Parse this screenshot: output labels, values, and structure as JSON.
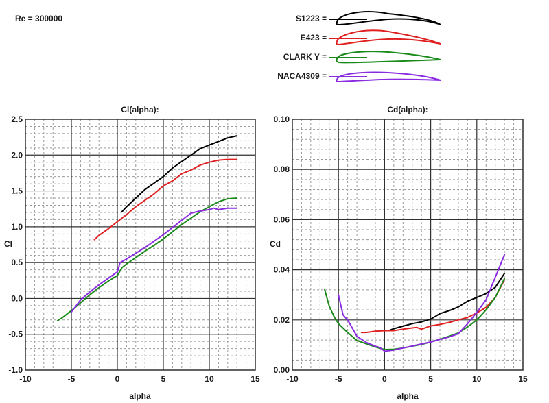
{
  "header": {
    "reynolds_label": "Re = 300000"
  },
  "legend": [
    {
      "name": "S1223 =",
      "color": "#000000",
      "foil": "s1223"
    },
    {
      "name": "E423 =",
      "color": "#e02020",
      "foil": "e423"
    },
    {
      "name": "CLARK Y =",
      "color": "#1a8a1a",
      "foil": "clarky"
    },
    {
      "name": "NACA4309 =",
      "color": "#8a2be2",
      "foil": "naca4309"
    }
  ],
  "chart_data": [
    {
      "type": "line",
      "title": "Cl(alpha):",
      "xlabel": "alpha",
      "ylabel": "Cl",
      "xlim": [
        -10,
        15
      ],
      "ylim": [
        -1.0,
        2.5
      ],
      "xticks": [
        "-10",
        "-5",
        "0",
        "5",
        "10",
        "15"
      ],
      "yticks": [
        "-1.0",
        "-0.5",
        "0.0",
        "0.5",
        "1.0",
        "1.5",
        "2.0",
        "2.5"
      ],
      "grid": true,
      "series": [
        {
          "name": "S1223",
          "color": "#000000",
          "x": [
            0.5,
            1,
            2,
            3,
            4,
            5,
            6,
            7,
            8,
            9,
            10,
            11,
            12,
            13
          ],
          "y": [
            1.21,
            1.28,
            1.4,
            1.52,
            1.61,
            1.7,
            1.82,
            1.91,
            2.0,
            2.09,
            2.14,
            2.19,
            2.24,
            2.27
          ]
        },
        {
          "name": "E423",
          "color": "#e02020",
          "x": [
            -2.5,
            -2,
            -1,
            0,
            1,
            2,
            3,
            4,
            5,
            6,
            7,
            8,
            9,
            10,
            11,
            12,
            13
          ],
          "y": [
            0.82,
            0.88,
            0.97,
            1.07,
            1.17,
            1.28,
            1.37,
            1.46,
            1.57,
            1.64,
            1.74,
            1.79,
            1.86,
            1.9,
            1.93,
            1.94,
            1.94
          ]
        },
        {
          "name": "CLARK Y",
          "color": "#1a8a1a",
          "x": [
            -6.5,
            -6,
            -5,
            -4,
            -3,
            -2,
            -1,
            0,
            0.5,
            1,
            2,
            3,
            4,
            5,
            6,
            7,
            8,
            9,
            10,
            11,
            12,
            13
          ],
          "y": [
            -0.31,
            -0.27,
            -0.17,
            -0.06,
            0.05,
            0.15,
            0.24,
            0.32,
            0.43,
            0.48,
            0.57,
            0.66,
            0.74,
            0.83,
            0.93,
            1.03,
            1.12,
            1.21,
            1.28,
            1.35,
            1.39,
            1.4
          ]
        },
        {
          "name": "NACA4309",
          "color": "#8a2be2",
          "x": [
            -5,
            -4,
            -3,
            -2,
            -1,
            0,
            0.3,
            1,
            2,
            3,
            4,
            5,
            6,
            7,
            8,
            9,
            10,
            10.5,
            11,
            12,
            13
          ],
          "y": [
            -0.19,
            -0.02,
            0.09,
            0.19,
            0.28,
            0.37,
            0.5,
            0.55,
            0.63,
            0.71,
            0.8,
            0.89,
            0.99,
            1.09,
            1.19,
            1.22,
            1.24,
            1.26,
            1.24,
            1.26,
            1.26
          ]
        }
      ]
    },
    {
      "type": "line",
      "title": "Cd(alpha):",
      "xlabel": "alpha",
      "ylabel": "Cd",
      "xlim": [
        -10,
        15
      ],
      "ylim": [
        0.0,
        0.1
      ],
      "xticks": [
        "-10",
        "-5",
        "0",
        "5",
        "10",
        "15"
      ],
      "yticks": [
        "0.00",
        "0.02",
        "0.04",
        "0.06",
        "0.08",
        "0.10"
      ],
      "grid": true,
      "series": [
        {
          "name": "S1223",
          "color": "#000000",
          "x": [
            0.5,
            1,
            2,
            3,
            4,
            5,
            6,
            7,
            8,
            9,
            10,
            11,
            12,
            13
          ],
          "y": [
            0.0158,
            0.0165,
            0.0175,
            0.0185,
            0.0192,
            0.0203,
            0.0225,
            0.0237,
            0.0252,
            0.0275,
            0.029,
            0.0305,
            0.033,
            0.0385
          ]
        },
        {
          "name": "E423",
          "color": "#e02020",
          "x": [
            -2.5,
            -2,
            -1,
            0,
            1,
            2,
            3,
            3.5,
            4,
            5,
            6,
            7,
            8,
            9,
            10,
            11,
            12,
            13
          ],
          "y": [
            0.015,
            0.015,
            0.0155,
            0.0157,
            0.0157,
            0.0163,
            0.0168,
            0.017,
            0.0163,
            0.0176,
            0.0182,
            0.019,
            0.02,
            0.021,
            0.0228,
            0.025,
            0.029,
            0.036
          ]
        },
        {
          "name": "CLARK Y",
          "color": "#1a8a1a",
          "x": [
            -6.5,
            -6,
            -5.5,
            -5,
            -4,
            -3,
            -2,
            -1,
            0,
            1,
            2,
            3,
            4,
            5,
            6,
            7,
            8,
            9,
            10,
            11,
            12,
            13
          ],
          "y": [
            0.0322,
            0.0255,
            0.0215,
            0.0185,
            0.015,
            0.0118,
            0.0105,
            0.0092,
            0.0082,
            0.0083,
            0.0088,
            0.0095,
            0.0102,
            0.0112,
            0.0123,
            0.0135,
            0.0148,
            0.0172,
            0.02,
            0.024,
            0.029,
            0.0365
          ]
        },
        {
          "name": "NACA4309",
          "color": "#8a2be2",
          "x": [
            -5,
            -4.5,
            -4,
            -3,
            -2,
            -1,
            -0.5,
            0,
            1,
            2,
            3,
            4,
            5,
            6,
            7,
            8,
            9,
            10,
            11,
            12,
            13
          ],
          "y": [
            0.03,
            0.022,
            0.02,
            0.0135,
            0.011,
            0.0095,
            0.009,
            0.0075,
            0.008,
            0.0088,
            0.0096,
            0.0104,
            0.0112,
            0.0122,
            0.0132,
            0.0145,
            0.0185,
            0.023,
            0.028,
            0.037,
            0.046
          ]
        }
      ]
    }
  ]
}
